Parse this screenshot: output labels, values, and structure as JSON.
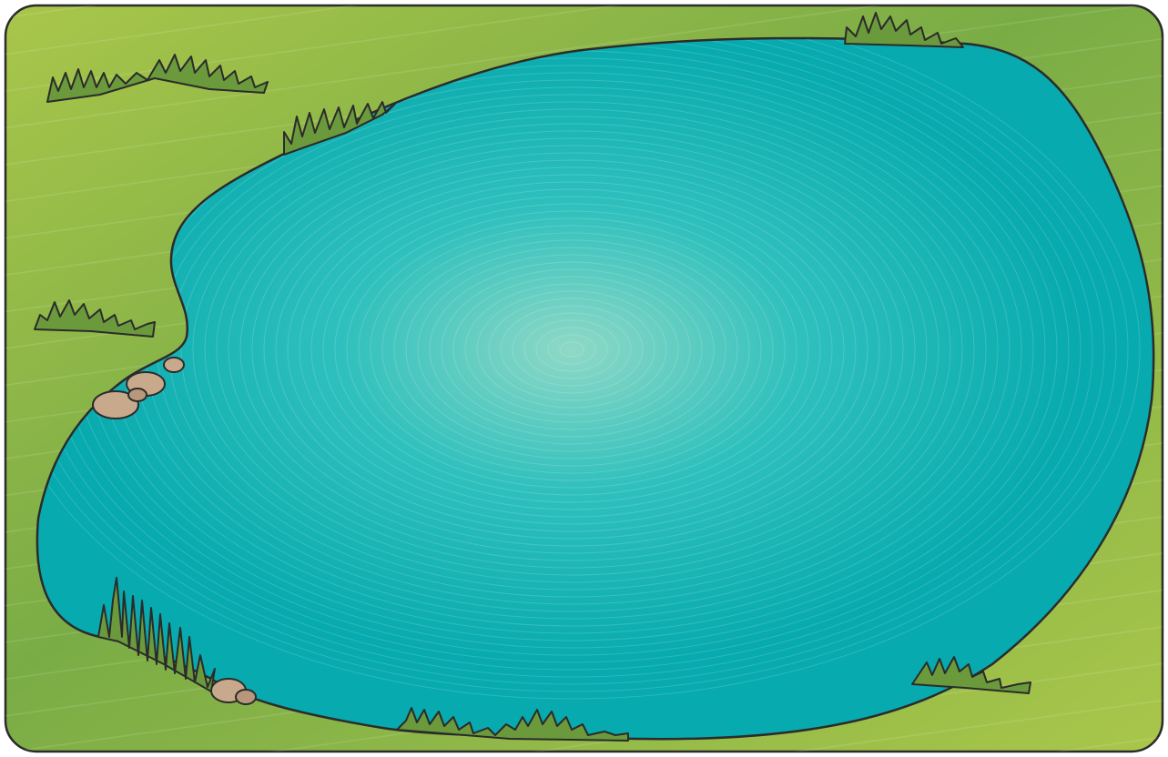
{
  "scene": {
    "subject": "pond",
    "colors": {
      "grass_light": "#a9c64a",
      "grass_dark": "#7aac46",
      "grass_tuft": "#6a9a3c",
      "water_center": "#8fd9c6",
      "water_mid": "#2fc0bd",
      "water_edge": "#07aaae",
      "outline": "#2b2b2b",
      "stone_fill": "#c9a98c",
      "stone_shade": "#a8876b"
    }
  }
}
